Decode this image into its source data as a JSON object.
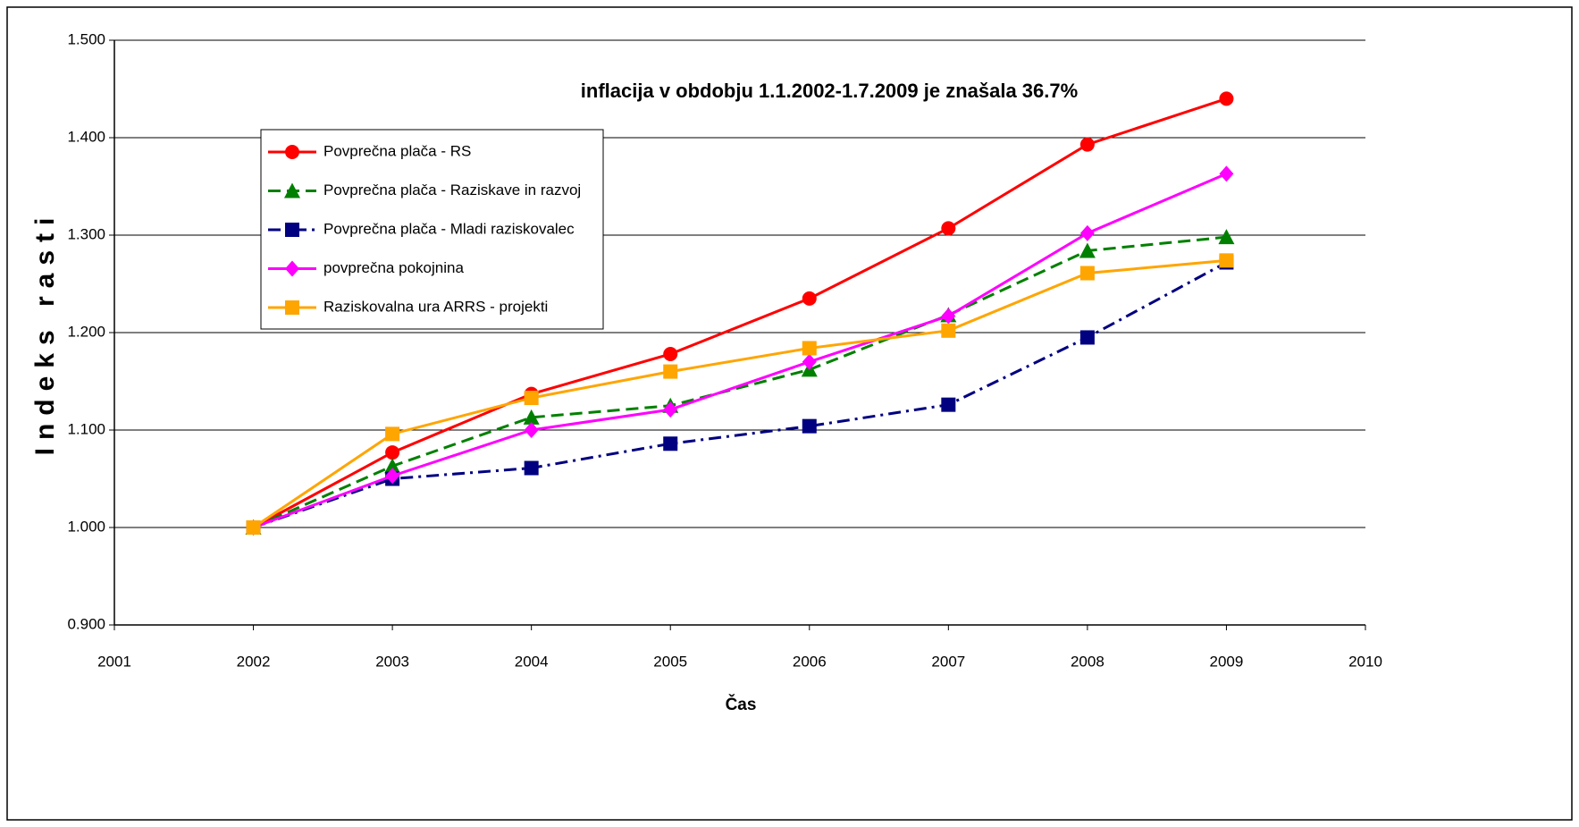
{
  "chart_data": {
    "type": "line",
    "annotation": "inflacija v obdobju 1.1.2002-1.7.2009 je znašala 36.7%",
    "xlabel": "Čas",
    "ylabel": "Indeks rasti",
    "x": [
      2002,
      2003,
      2004,
      2005,
      2006,
      2007,
      2008,
      2009
    ],
    "xlim": [
      2001,
      2010
    ],
    "xticks": [
      2001,
      2002,
      2003,
      2004,
      2005,
      2006,
      2007,
      2008,
      2009,
      2010
    ],
    "ylim": [
      0.9,
      1.5
    ],
    "yticks": [
      {
        "value": 0.9,
        "label": "0.900"
      },
      {
        "value": 1.0,
        "label": "1.000"
      },
      {
        "value": 1.1,
        "label": "1.100"
      },
      {
        "value": 1.2,
        "label": "1.200"
      },
      {
        "value": 1.3,
        "label": "1.300"
      },
      {
        "value": 1.4,
        "label": "1.400"
      },
      {
        "value": 1.5,
        "label": "1.500"
      }
    ],
    "grid": true,
    "legend": "upper left",
    "series": [
      {
        "name": "Povprečna plača - RS",
        "color": "#ff0000",
        "marker": "circle",
        "line_style": "solid",
        "values": [
          1.0,
          1.077,
          1.137,
          1.178,
          1.235,
          1.307,
          1.393,
          1.44
        ]
      },
      {
        "name": "Povprečna plača - Raziskave in razvoj",
        "color": "#008000",
        "marker": "triangle",
        "line_style": "dashed",
        "values": [
          1.0,
          1.063,
          1.113,
          1.125,
          1.162,
          1.218,
          1.284,
          1.298
        ]
      },
      {
        "name": "Povprečna plača - Mladi raziskovalec",
        "color": "#000080",
        "marker": "square",
        "line_style": "dashdot",
        "values": [
          1.0,
          1.05,
          1.061,
          1.086,
          1.104,
          1.126,
          1.195,
          1.272
        ]
      },
      {
        "name": "povprečna pokojnina",
        "color": "#ff00ff",
        "marker": "diamond",
        "line_style": "solid",
        "values": [
          1.0,
          1.053,
          1.1,
          1.121,
          1.17,
          1.217,
          1.302,
          1.363
        ]
      },
      {
        "name": "Raziskovalna ura ARRS - projekti",
        "color": "#ffa500",
        "marker": "square",
        "line_style": "solid",
        "values": [
          1.0,
          1.096,
          1.133,
          1.16,
          1.184,
          1.202,
          1.261,
          1.274
        ]
      }
    ]
  }
}
